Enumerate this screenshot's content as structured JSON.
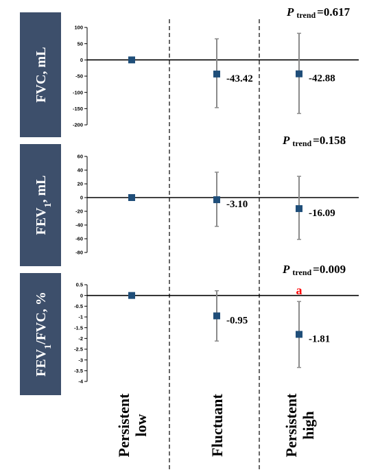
{
  "chart_data": {
    "type": "scatter",
    "categories": [
      "Persistent low",
      "Fluctuant",
      "Persistent high"
    ],
    "category_lines": [
      [
        "Persistent",
        "low"
      ],
      [
        "Fluctuant"
      ],
      [
        "Persistent",
        "high"
      ]
    ],
    "panels": [
      {
        "ylabel_main": "FVC, mL",
        "ylabel_sub": "",
        "ylabel_tail": "",
        "ptrend_p": "P",
        "ptrend_sub": "trend",
        "ptrend_val": "=0.617",
        "ylim": [
          -200,
          100
        ],
        "ticks": [
          100,
          50,
          0,
          -50,
          -100,
          -150,
          -200
        ],
        "points": [
          {
            "y": 0,
            "lo": 0,
            "hi": 0,
            "label": ""
          },
          {
            "y": -43.42,
            "lo": -147,
            "hi": 65,
            "label": "-43.42"
          },
          {
            "y": -42.88,
            "lo": -165,
            "hi": 82,
            "label": "-42.88"
          }
        ]
      },
      {
        "ylabel_main": "FEV",
        "ylabel_sub": "1",
        "ylabel_tail": ", mL",
        "ptrend_p": "P",
        "ptrend_sub": "trend",
        "ptrend_val": "=0.158",
        "ylim": [
          -80,
          60
        ],
        "ticks": [
          60,
          40,
          20,
          0,
          -20,
          -40,
          -60,
          -80
        ],
        "points": [
          {
            "y": 0,
            "lo": 0,
            "hi": 0,
            "label": ""
          },
          {
            "y": -3.1,
            "lo": -42,
            "hi": 37,
            "label": "-3.10"
          },
          {
            "y": -16.09,
            "lo": -61,
            "hi": 31,
            "label": "-16.09"
          }
        ]
      },
      {
        "ylabel_main": "FEV",
        "ylabel_sub": "1",
        "ylabel_tail": "/FVC, %",
        "ptrend_p": "P",
        "ptrend_sub": "trend",
        "ptrend_val": "=0.009",
        "annotation": "a",
        "ylim": [
          -4,
          0.5
        ],
        "ticks": [
          0.5,
          0,
          -0.5,
          -1,
          -1.5,
          -2,
          -2.5,
          -3,
          -3.5,
          -4
        ],
        "points": [
          {
            "y": 0,
            "lo": 0,
            "hi": 0,
            "label": ""
          },
          {
            "y": -0.95,
            "lo": -2.12,
            "hi": 0.22,
            "label": "-0.95"
          },
          {
            "y": -1.81,
            "lo": -3.35,
            "hi": -0.28,
            "label": "-1.81"
          }
        ]
      }
    ]
  },
  "colors": {
    "label_box": "#3d4f6b",
    "marker": "#1f4e79",
    "errorbar": "#8a8a8a",
    "annotation": "#ff0000"
  }
}
